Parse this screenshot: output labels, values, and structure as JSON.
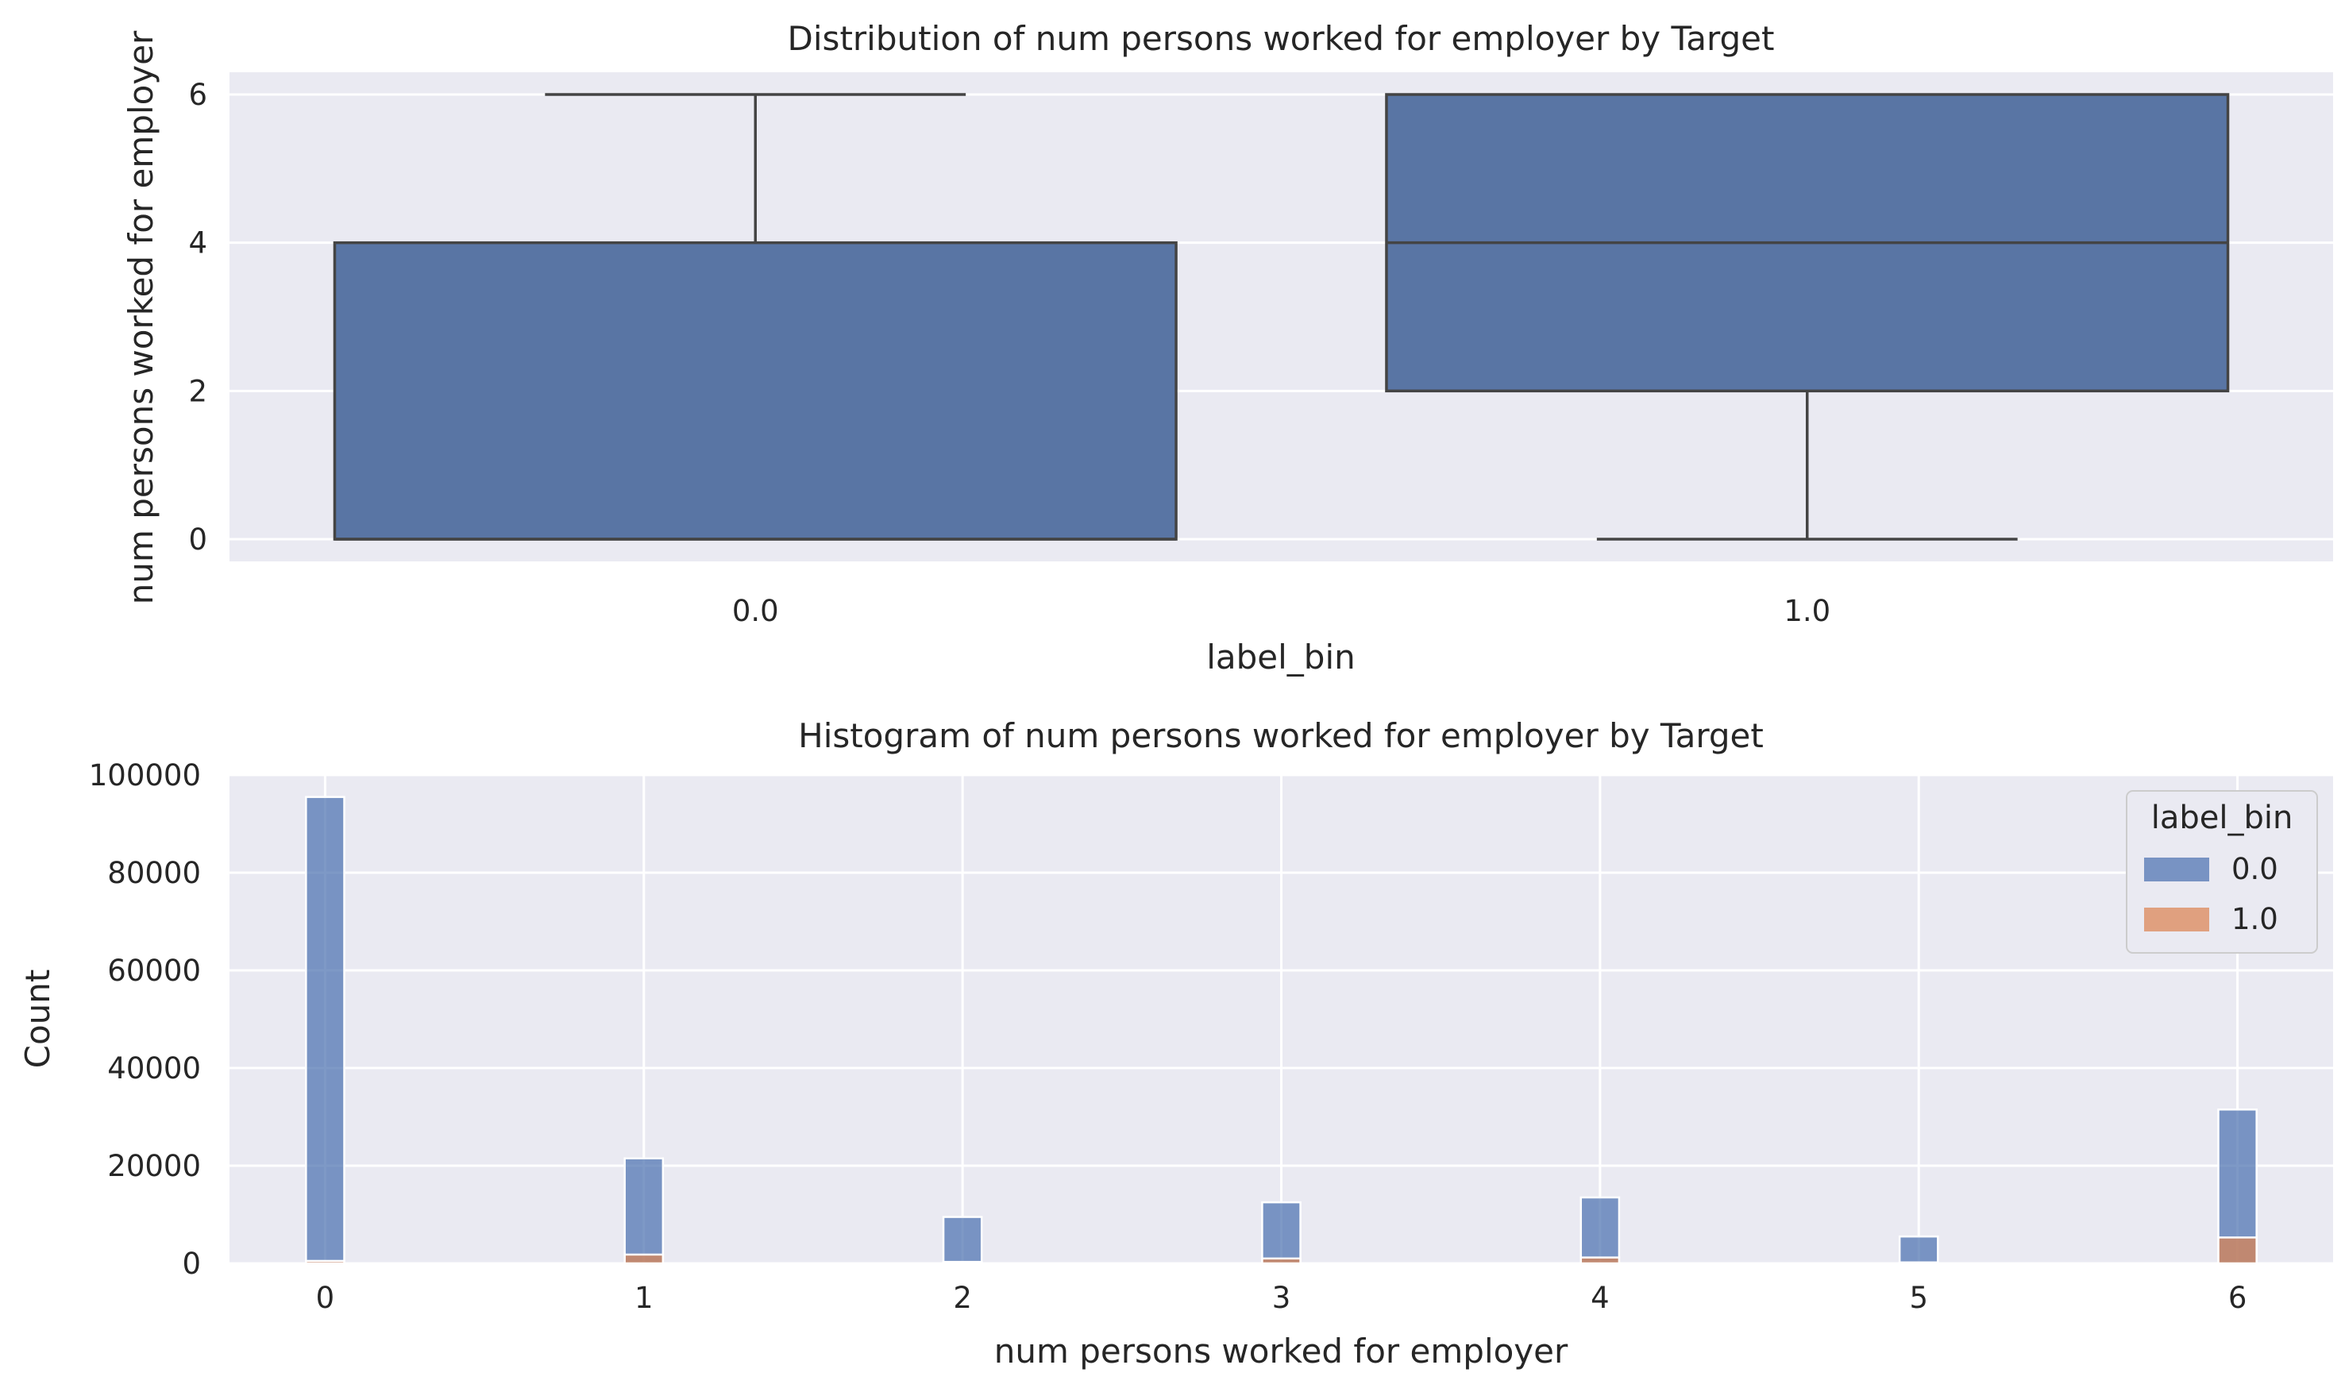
{
  "chart_data": [
    {
      "type": "box",
      "title": "Distribution of num persons worked for employer by Target",
      "xlabel": "label_bin",
      "ylabel": "num persons worked for employer",
      "categories": [
        "0.0",
        "1.0"
      ],
      "ylim": [
        -0.3,
        6.3
      ],
      "yticks": [
        0,
        2,
        4,
        6
      ],
      "grid": true,
      "color": "#5975a4",
      "edge_color": "#444444",
      "boxes": [
        {
          "category": "0.0",
          "whisker_low": 0,
          "q1": 0,
          "median": 0,
          "q3": 4,
          "whisker_high": 6
        },
        {
          "category": "1.0",
          "whisker_low": 0,
          "q1": 2,
          "median": 4,
          "q3": 6,
          "whisker_high": 6
        }
      ]
    },
    {
      "type": "bar",
      "subtype": "histogram",
      "title": "Histogram of num persons worked for employer by Target",
      "xlabel": "num persons worked for employer",
      "ylabel": "Count",
      "x": [
        0,
        1,
        2,
        3,
        4,
        5,
        6
      ],
      "xlim": [
        -0.3,
        6.3
      ],
      "xticks": [
        0,
        1,
        2,
        3,
        4,
        5,
        6
      ],
      "ylim": [
        0,
        100000
      ],
      "yticks": [
        0,
        20000,
        40000,
        60000,
        80000,
        100000
      ],
      "bin_width": 0.12,
      "grid": true,
      "legend": {
        "title": "label_bin",
        "position": "top-right"
      },
      "series": [
        {
          "name": "0.0",
          "color": "#4c72b0",
          "values": [
            95500,
            21500,
            9500,
            12500,
            13500,
            5500,
            31500
          ]
        },
        {
          "name": "1.0",
          "color": "#dd8452",
          "values": [
            500,
            1800,
            300,
            1000,
            1200,
            200,
            5300
          ]
        }
      ]
    }
  ]
}
